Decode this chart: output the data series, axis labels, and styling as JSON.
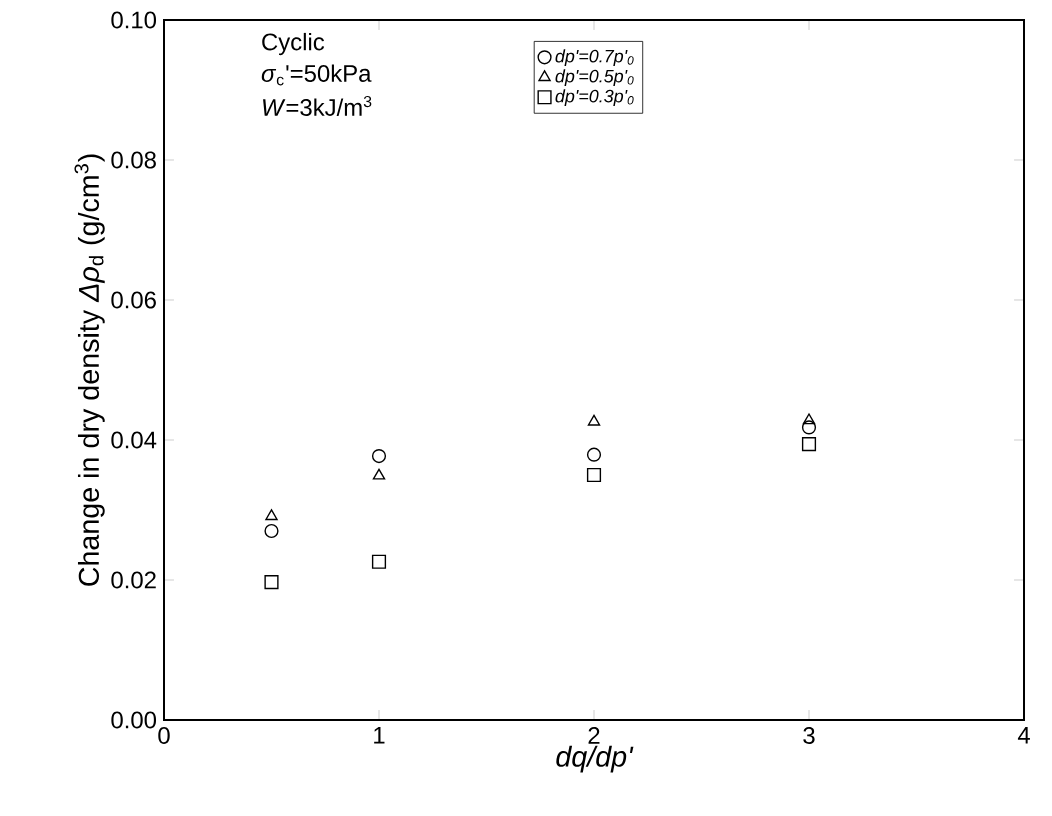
{
  "chart_data": {
    "type": "scatter",
    "xlabel": "dq/dp'",
    "ylabel": "Change in dry density *Δρ*$_{d}$ (g/cm$^{3}$)",
    "x": [
      0.5,
      1,
      2,
      3
    ],
    "series": [
      {
        "name": "dp'=0.7p'$_{0}$",
        "color": "#000000",
        "marker": "circle",
        "values": [
          0.027,
          0.0377,
          0.0379,
          0.0418
        ]
      },
      {
        "name": "dp'=0.5p'$_{0}$",
        "color": "#000000",
        "marker": "triangle",
        "values": [
          0.0291,
          0.0349,
          0.0426,
          0.0428
        ]
      },
      {
        "name": "dp'=0.3p'$_{0}$",
        "color": "#000000",
        "marker": "square",
        "values": [
          0.0197,
          0.0226,
          0.035,
          0.0394
        ]
      }
    ],
    "xlim": [
      0,
      4
    ],
    "xticks": [
      0,
      1,
      2,
      3,
      4
    ],
    "ylim": [
      0,
      0.1
    ],
    "yticks": [
      {
        "value": 0,
        "label": "0.00"
      },
      {
        "value": 0.02,
        "label": "0.02"
      },
      {
        "value": 0.04,
        "label": "0.04"
      },
      {
        "value": 0.06,
        "label": "0.06"
      },
      {
        "value": 0.08,
        "label": "0.08"
      },
      {
        "value": 0.1,
        "label": "0.10"
      }
    ],
    "annotations": [
      "Cyclic",
      "*σ*$_{c}$'=50kPa",
      "*W*=3kJ/m$^{3}$"
    ],
    "legend": "top",
    "grid": false
  }
}
